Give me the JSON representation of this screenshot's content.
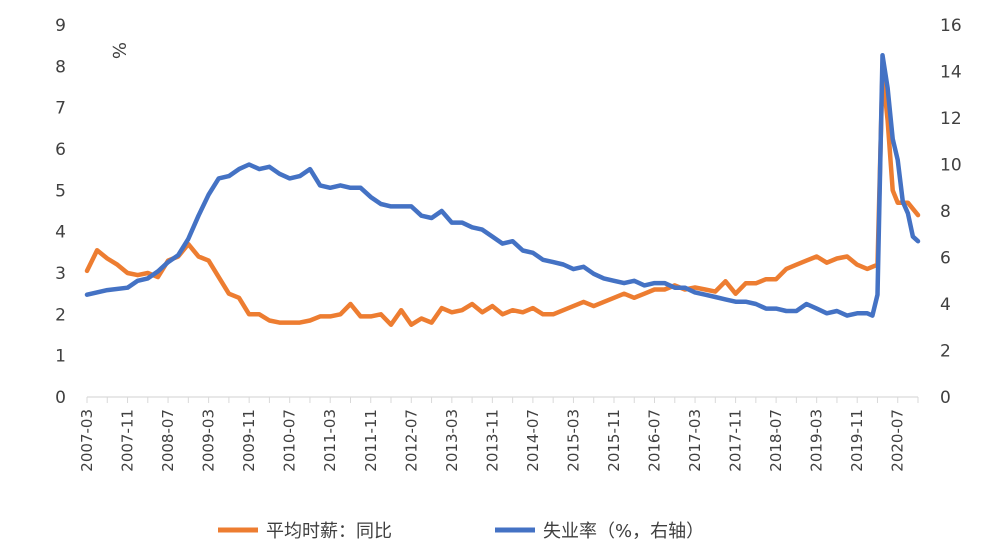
{
  "chart_data": {
    "type": "line",
    "title": "",
    "xlabel": "",
    "ylabel": "%",
    "ylim": [
      0,
      9
    ],
    "y2lim": [
      0,
      16
    ],
    "yticks": [
      "0",
      "1",
      "2",
      "3",
      "4",
      "5",
      "6",
      "7",
      "8",
      "9"
    ],
    "y2ticks": [
      "0",
      "2",
      "4",
      "6",
      "8",
      "10",
      "12",
      "14",
      "16"
    ],
    "xticks": [
      "2007-03",
      "2007-11",
      "2008-07",
      "2009-03",
      "2009-11",
      "2010-07",
      "2011-03",
      "2011-11",
      "2012-07",
      "2013-03",
      "2013-11",
      "2014-07",
      "2015-03",
      "2015-11",
      "2016-07",
      "2017-03",
      "2017-11",
      "2018-07",
      "2019-03",
      "2019-11",
      "2020-07"
    ],
    "x_range": [
      "2007-03",
      "2020-11"
    ],
    "grid": false,
    "legend_position": "bottom",
    "series": [
      {
        "name": "平均时薪：同比",
        "axis": "left",
        "color": "#ED7D31",
        "points": [
          [
            "2007-03",
            3.05
          ],
          [
            "2007-05",
            3.55
          ],
          [
            "2007-07",
            3.35
          ],
          [
            "2007-09",
            3.2
          ],
          [
            "2007-11",
            3.0
          ],
          [
            "2008-01",
            2.95
          ],
          [
            "2008-03",
            3.0
          ],
          [
            "2008-05",
            2.9
          ],
          [
            "2008-07",
            3.3
          ],
          [
            "2008-09",
            3.4
          ],
          [
            "2008-11",
            3.7
          ],
          [
            "2009-01",
            3.4
          ],
          [
            "2009-03",
            3.3
          ],
          [
            "2009-05",
            2.9
          ],
          [
            "2009-07",
            2.5
          ],
          [
            "2009-09",
            2.4
          ],
          [
            "2009-11",
            2.0
          ],
          [
            "2010-01",
            2.0
          ],
          [
            "2010-03",
            1.85
          ],
          [
            "2010-05",
            1.8
          ],
          [
            "2010-07",
            1.8
          ],
          [
            "2010-09",
            1.8
          ],
          [
            "2010-11",
            1.85
          ],
          [
            "2011-01",
            1.95
          ],
          [
            "2011-03",
            1.95
          ],
          [
            "2011-05",
            2.0
          ],
          [
            "2011-07",
            2.25
          ],
          [
            "2011-09",
            1.95
          ],
          [
            "2011-11",
            1.95
          ],
          [
            "2012-01",
            2.0
          ],
          [
            "2012-03",
            1.75
          ],
          [
            "2012-05",
            2.1
          ],
          [
            "2012-07",
            1.75
          ],
          [
            "2012-09",
            1.9
          ],
          [
            "2012-11",
            1.8
          ],
          [
            "2013-01",
            2.15
          ],
          [
            "2013-03",
            2.05
          ],
          [
            "2013-05",
            2.1
          ],
          [
            "2013-07",
            2.25
          ],
          [
            "2013-09",
            2.05
          ],
          [
            "2013-11",
            2.2
          ],
          [
            "2014-01",
            2.0
          ],
          [
            "2014-03",
            2.1
          ],
          [
            "2014-05",
            2.05
          ],
          [
            "2014-07",
            2.15
          ],
          [
            "2014-09",
            2.0
          ],
          [
            "2014-11",
            2.0
          ],
          [
            "2015-01",
            2.1
          ],
          [
            "2015-03",
            2.2
          ],
          [
            "2015-05",
            2.3
          ],
          [
            "2015-07",
            2.2
          ],
          [
            "2015-09",
            2.3
          ],
          [
            "2015-11",
            2.4
          ],
          [
            "2016-01",
            2.5
          ],
          [
            "2016-03",
            2.4
          ],
          [
            "2016-05",
            2.5
          ],
          [
            "2016-07",
            2.6
          ],
          [
            "2016-09",
            2.6
          ],
          [
            "2016-11",
            2.7
          ],
          [
            "2017-01",
            2.6
          ],
          [
            "2017-03",
            2.65
          ],
          [
            "2017-05",
            2.6
          ],
          [
            "2017-07",
            2.55
          ],
          [
            "2017-09",
            2.8
          ],
          [
            "2017-11",
            2.5
          ],
          [
            "2018-01",
            2.75
          ],
          [
            "2018-03",
            2.75
          ],
          [
            "2018-05",
            2.85
          ],
          [
            "2018-07",
            2.85
          ],
          [
            "2018-09",
            3.1
          ],
          [
            "2018-11",
            3.2
          ],
          [
            "2019-01",
            3.3
          ],
          [
            "2019-03",
            3.4
          ],
          [
            "2019-05",
            3.25
          ],
          [
            "2019-07",
            3.35
          ],
          [
            "2019-09",
            3.4
          ],
          [
            "2019-11",
            3.2
          ],
          [
            "2020-01",
            3.1
          ],
          [
            "2020-03",
            3.2
          ],
          [
            "2020-04",
            7.9
          ],
          [
            "2020-05",
            6.7
          ],
          [
            "2020-06",
            5.0
          ],
          [
            "2020-07",
            4.7
          ],
          [
            "2020-09",
            4.7
          ],
          [
            "2020-11",
            4.4
          ]
        ]
      },
      {
        "name": "失业率（%，右轴）",
        "axis": "right",
        "color": "#4472C4",
        "points": [
          [
            "2007-03",
            4.4
          ],
          [
            "2007-07",
            4.6
          ],
          [
            "2007-11",
            4.7
          ],
          [
            "2008-01",
            5.0
          ],
          [
            "2008-03",
            5.1
          ],
          [
            "2008-05",
            5.4
          ],
          [
            "2008-07",
            5.8
          ],
          [
            "2008-09",
            6.1
          ],
          [
            "2008-11",
            6.8
          ],
          [
            "2009-01",
            7.8
          ],
          [
            "2009-03",
            8.7
          ],
          [
            "2009-05",
            9.4
          ],
          [
            "2009-07",
            9.5
          ],
          [
            "2009-09",
            9.8
          ],
          [
            "2009-11",
            10.0
          ],
          [
            "2010-01",
            9.8
          ],
          [
            "2010-03",
            9.9
          ],
          [
            "2010-05",
            9.6
          ],
          [
            "2010-07",
            9.4
          ],
          [
            "2010-09",
            9.5
          ],
          [
            "2010-11",
            9.8
          ],
          [
            "2011-01",
            9.1
          ],
          [
            "2011-03",
            9.0
          ],
          [
            "2011-05",
            9.1
          ],
          [
            "2011-07",
            9.0
          ],
          [
            "2011-09",
            9.0
          ],
          [
            "2011-11",
            8.6
          ],
          [
            "2012-01",
            8.3
          ],
          [
            "2012-03",
            8.2
          ],
          [
            "2012-05",
            8.2
          ],
          [
            "2012-07",
            8.2
          ],
          [
            "2012-09",
            7.8
          ],
          [
            "2012-11",
            7.7
          ],
          [
            "2013-01",
            8.0
          ],
          [
            "2013-03",
            7.5
          ],
          [
            "2013-05",
            7.5
          ],
          [
            "2013-07",
            7.3
          ],
          [
            "2013-09",
            7.2
          ],
          [
            "2013-11",
            6.9
          ],
          [
            "2014-01",
            6.6
          ],
          [
            "2014-03",
            6.7
          ],
          [
            "2014-05",
            6.3
          ],
          [
            "2014-07",
            6.2
          ],
          [
            "2014-09",
            5.9
          ],
          [
            "2014-11",
            5.8
          ],
          [
            "2015-01",
            5.7
          ],
          [
            "2015-03",
            5.5
          ],
          [
            "2015-05",
            5.6
          ],
          [
            "2015-07",
            5.3
          ],
          [
            "2015-09",
            5.1
          ],
          [
            "2015-11",
            5.0
          ],
          [
            "2016-01",
            4.9
          ],
          [
            "2016-03",
            5.0
          ],
          [
            "2016-05",
            4.8
          ],
          [
            "2016-07",
            4.9
          ],
          [
            "2016-09",
            4.9
          ],
          [
            "2016-11",
            4.7
          ],
          [
            "2017-01",
            4.7
          ],
          [
            "2017-03",
            4.5
          ],
          [
            "2017-05",
            4.4
          ],
          [
            "2017-07",
            4.3
          ],
          [
            "2017-09",
            4.2
          ],
          [
            "2017-11",
            4.1
          ],
          [
            "2018-01",
            4.1
          ],
          [
            "2018-03",
            4.0
          ],
          [
            "2018-05",
            3.8
          ],
          [
            "2018-07",
            3.8
          ],
          [
            "2018-09",
            3.7
          ],
          [
            "2018-11",
            3.7
          ],
          [
            "2019-01",
            4.0
          ],
          [
            "2019-03",
            3.8
          ],
          [
            "2019-05",
            3.6
          ],
          [
            "2019-07",
            3.7
          ],
          [
            "2019-09",
            3.5
          ],
          [
            "2019-11",
            3.6
          ],
          [
            "2020-01",
            3.6
          ],
          [
            "2020-02",
            3.5
          ],
          [
            "2020-03",
            4.4
          ],
          [
            "2020-04",
            14.7
          ],
          [
            "2020-05",
            13.3
          ],
          [
            "2020-06",
            11.1
          ],
          [
            "2020-07",
            10.2
          ],
          [
            "2020-08",
            8.4
          ],
          [
            "2020-09",
            7.9
          ],
          [
            "2020-10",
            6.9
          ],
          [
            "2020-11",
            6.7
          ]
        ]
      }
    ]
  }
}
